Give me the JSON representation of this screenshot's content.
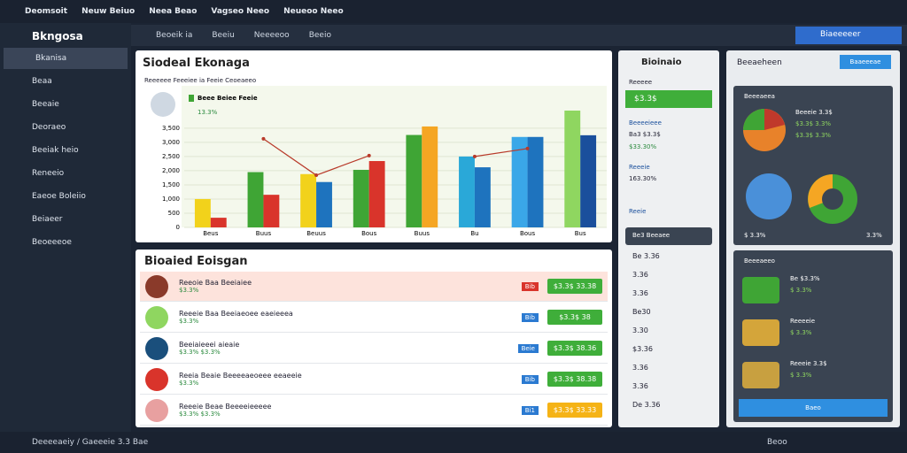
{
  "topbar": {
    "app": "Deomsoit",
    "menus": [
      "Neuw Beiuo",
      "Neea Beao",
      "Vagseo Neeo",
      "Neueoo Neeo"
    ]
  },
  "sidebar": {
    "brand": "Bkngosa",
    "items": [
      "Bkanisa",
      "Beaa",
      "Beeaie",
      "Deoraeo",
      "Beeiak heio",
      "Reneeio",
      "Eaeoe Boleiio",
      "Beiaeer",
      "Beoeeeoe"
    ]
  },
  "toolbar": {
    "tabs": [
      "Beoeik ia",
      "Beeiu",
      "Neeeeoo",
      "Beeio"
    ],
    "search": "Biaeeeeer"
  },
  "chart": {
    "title": "Siodeal Ekonaga",
    "subtitle": "Reeeeee Feeeiee ia Feeie Ceoeaeeo",
    "person": "Beee Beiee Feeie",
    "stat": "13.3%",
    "categories": [
      "Beus",
      "Buus",
      "Beuus",
      "Bous",
      "Buus",
      "Bu",
      "Bous",
      "Bus"
    ],
    "series": [
      {
        "colors": [
          "#f2d21b",
          "#3fa535",
          "#f2d21b",
          "#3fa535",
          "#3fa535",
          "#2aa8d8",
          "#3aa7e8",
          "#8fd660"
        ],
        "values": [
          1000,
          1950,
          1880,
          2030,
          3260,
          2500,
          3190,
          4120
        ]
      },
      {
        "colors": [
          "#d9342b",
          "#d9342b",
          "#1e73be",
          "#d9342b",
          "#f5a623",
          "#1e73be",
          "#1e73be",
          "#1a4f9c"
        ],
        "values": [
          340,
          1150,
          1600,
          2340,
          3560,
          2120,
          3190,
          3250
        ]
      }
    ],
    "trend": {
      "color": "#b83a2a",
      "values": [
        null,
        3125,
        1840,
        2530,
        null,
        2500,
        2780,
        null
      ]
    },
    "ylim": [
      0,
      4900
    ],
    "yticks": [
      0,
      500,
      {
        "value": 1000,
        "label": "1,000"
      },
      {
        "value": 1500,
        "label": "1,500"
      },
      {
        "value": 2000,
        "label": "2,000"
      },
      {
        "value": 2500,
        "label": "2,500"
      },
      {
        "value": 3000,
        "label": "3,000"
      },
      {
        "value": 3500,
        "label": "3,500"
      }
    ]
  },
  "list": {
    "title": "Bioaied Eoisgan",
    "rows": [
      {
        "name": "Reeoie Baa Beeiaiee",
        "sub": "$3.3%",
        "badge": "Bib",
        "button": "$3.3$ 33.38"
      },
      {
        "name": "Reeeie Baa Beeiaeoee eaeieeea",
        "sub": "$3.3%",
        "badge": "Bib",
        "button": "$3.3$ 38"
      },
      {
        "name": "Beeiaieeei aieaie",
        "sub": "$3.3% $3.3%",
        "badge": "Beie",
        "button": "$3.3$ 38.36"
      },
      {
        "name": "Reeia Beaie Beeeeaeoeee eeaeeie",
        "sub": "$3.3%",
        "badge": "Bib",
        "button": "$3.3$ 38.38"
      },
      {
        "name": "Reeeie Beae Beeeeieeeee",
        "sub": "$3.3% $3.3%",
        "badge": "Bi1",
        "button": "$3.3$ 33.33"
      }
    ]
  },
  "middle": {
    "title": "Bioinaio",
    "label1": "Reeeee",
    "button": "$3.3$",
    "items": [
      {
        "name": "Beeeeieee",
        "a": "Ba3 $3.3$",
        "b": "$33.30%"
      },
      {
        "name": "Reeeie",
        "a": "163.30%",
        "b": ""
      },
      {
        "name": "Reeie",
        "a": "",
        "b": ""
      }
    ],
    "dark": "Be3 Beeaee",
    "codes": [
      "Be 3.36",
      "3.36",
      "3.36",
      "Be30",
      "3.30",
      "$3.36",
      "3.36",
      "3.36",
      "De 3.36"
    ]
  },
  "right": {
    "title": "Beeaeheen",
    "button": "Baaeeeae",
    "cards": [
      {
        "title": "Beeeaeea",
        "lines": [
          "Beeeie 3.3$",
          "$3.3$ 3.3%",
          "$3.3$ 3.3%"
        ]
      },
      {
        "title": "",
        "lines": [
          "$ 3.3%",
          "3.3%"
        ]
      }
    ],
    "card2": {
      "title": "Beeeaeeo",
      "items": [
        [
          "Be $3.3%",
          "$ 3.3%"
        ],
        [
          "Reeeeie",
          "$ 3.3%"
        ],
        [
          "Reeeie 3.3$",
          "$ 3.3%"
        ]
      ],
      "button": "Baeo"
    }
  },
  "status": {
    "left": "Deeeeaeiy / Gaeeeie 3.3 Bae",
    "right": "Beoo"
  }
}
